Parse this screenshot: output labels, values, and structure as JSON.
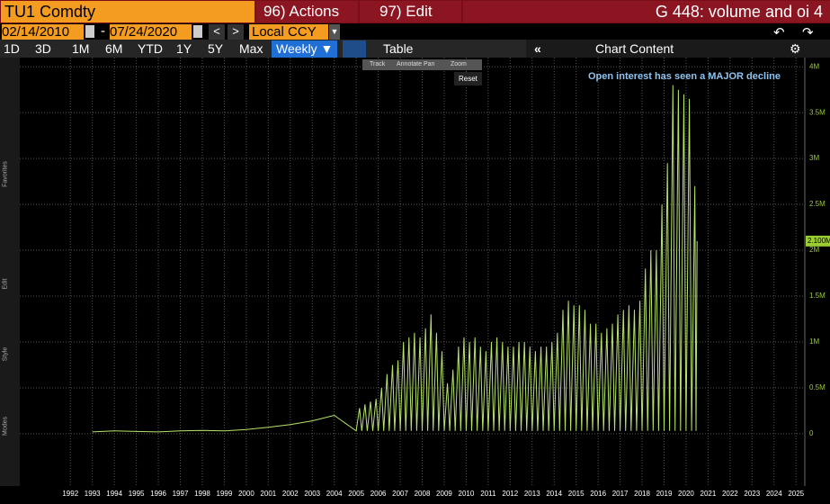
{
  "header": {
    "ticker": "TU1 Comdty",
    "actions": "96) Actions",
    "edit": "97) Edit",
    "title": "G 448: volume and oi 4"
  },
  "range": {
    "start": "02/14/2010",
    "separator": "-",
    "end": "07/24/2020",
    "currency": "Local CCY"
  },
  "periods": [
    "1D",
    "3D",
    "1M",
    "6M",
    "YTD",
    "1Y",
    "5Y",
    "Max"
  ],
  "frequency": "Weekly",
  "table": "Table",
  "chart_content": "Chart Content",
  "sidebar": [
    "Favorites",
    "Edit",
    "Style",
    "Modes"
  ],
  "mini_toolbar": [
    "Track",
    "Annotate",
    "Pan",
    "Zoom"
  ],
  "reset": "Reset",
  "chart_data": {
    "type": "line",
    "color": "#b6e36b",
    "annotation": "Open interest has seen a MAJOR decline",
    "last_value_label": {
      "value": 2100000,
      "label": "2.100M"
    },
    "x": [
      1993,
      1994,
      1995,
      1996,
      1997,
      1998,
      1999,
      2000,
      2001,
      2002,
      2003,
      2004,
      2005,
      2005.15,
      2005.25,
      2005.4,
      2005.5,
      2005.65,
      2005.75,
      2005.9,
      2006,
      2006.15,
      2006.25,
      2006.4,
      2006.5,
      2006.65,
      2006.75,
      2006.9,
      2007,
      2007.15,
      2007.25,
      2007.4,
      2007.5,
      2007.65,
      2007.75,
      2007.9,
      2008,
      2008.15,
      2008.25,
      2008.4,
      2008.5,
      2008.65,
      2008.75,
      2008.9,
      2009,
      2009.15,
      2009.25,
      2009.4,
      2009.5,
      2009.65,
      2009.75,
      2009.9,
      2010,
      2010.15,
      2010.25,
      2010.4,
      2010.5,
      2010.65,
      2010.75,
      2010.9,
      2011,
      2011.15,
      2011.25,
      2011.4,
      2011.5,
      2011.65,
      2011.75,
      2011.9,
      2012,
      2012.15,
      2012.25,
      2012.4,
      2012.5,
      2012.65,
      2012.75,
      2012.9,
      2013,
      2013.15,
      2013.25,
      2013.4,
      2013.5,
      2013.65,
      2013.75,
      2013.9,
      2014,
      2014.15,
      2014.25,
      2014.4,
      2014.5,
      2014.65,
      2014.75,
      2014.9,
      2015,
      2015.15,
      2015.25,
      2015.4,
      2015.5,
      2015.65,
      2015.75,
      2015.9,
      2016,
      2016.15,
      2016.25,
      2016.4,
      2016.5,
      2016.65,
      2016.75,
      2016.9,
      2017,
      2017.15,
      2017.25,
      2017.4,
      2017.5,
      2017.65,
      2017.75,
      2017.9,
      2018,
      2018.15,
      2018.25,
      2018.4,
      2018.5,
      2018.65,
      2018.75,
      2018.9,
      2019,
      2019.15,
      2019.25,
      2019.4,
      2019.5,
      2019.65,
      2019.75,
      2019.9,
      2020,
      2020.15,
      2020.25,
      2020.4,
      2020.45,
      2020.5
    ],
    "values": [
      20000,
      30000,
      25000,
      20000,
      30000,
      35000,
      30000,
      45000,
      70000,
      100000,
      140000,
      200000,
      30000,
      280000,
      30000,
      320000,
      30000,
      350000,
      30000,
      380000,
      30000,
      500000,
      30000,
      650000,
      30000,
      750000,
      30000,
      800000,
      30000,
      1000000,
      30000,
      1050000,
      30000,
      1100000,
      30000,
      1050000,
      30000,
      1150000,
      30000,
      1300000,
      30000,
      1100000,
      30000,
      900000,
      30000,
      550000,
      30000,
      700000,
      30000,
      950000,
      30000,
      1050000,
      30000,
      1000000,
      30000,
      1050000,
      30000,
      950000,
      30000,
      900000,
      30000,
      1000000,
      30000,
      1050000,
      30000,
      1000000,
      30000,
      950000,
      30000,
      950000,
      30000,
      1000000,
      30000,
      1000000,
      30000,
      950000,
      30000,
      900000,
      30000,
      950000,
      30000,
      950000,
      30000,
      1000000,
      30000,
      1100000,
      30000,
      1350000,
      30000,
      1450000,
      30000,
      1400000,
      30000,
      1400000,
      30000,
      1350000,
      30000,
      1200000,
      30000,
      1200000,
      30000,
      1100000,
      30000,
      1150000,
      30000,
      1200000,
      30000,
      1300000,
      30000,
      1350000,
      30000,
      1400000,
      30000,
      1350000,
      30000,
      1450000,
      30000,
      1800000,
      30000,
      2000000,
      30000,
      2000000,
      30000,
      2500000,
      30000,
      2950000,
      30000,
      3800000,
      30000,
      3750000,
      30000,
      3700000,
      30000,
      3650000,
      30000,
      2700000,
      30000,
      2100000
    ],
    "xlim": [
      1989.7,
      2025.4
    ],
    "ylim": [
      -570000,
      4100000
    ],
    "xticks": [
      1992,
      1993,
      1994,
      1995,
      1996,
      1997,
      1998,
      1999,
      2000,
      2001,
      2002,
      2003,
      2004,
      2005,
      2006,
      2007,
      2008,
      2009,
      2010,
      2011,
      2012,
      2013,
      2014,
      2015,
      2016,
      2017,
      2018,
      2019,
      2020,
      2021,
      2022,
      2023,
      2024,
      2025
    ],
    "yticks": [
      0,
      {
        "value": 500000,
        "label": "0.5M"
      },
      {
        "value": 1000000,
        "label": "1M"
      },
      {
        "value": 1500000,
        "label": "1.5M"
      },
      {
        "value": 2000000,
        "label": "2M"
      },
      {
        "value": 2500000,
        "label": "2.5M"
      },
      {
        "value": 3000000,
        "label": "3M"
      },
      {
        "value": 3500000,
        "label": "3.5M"
      },
      {
        "value": 4000000,
        "label": "4M"
      }
    ],
    "grid": true
  }
}
